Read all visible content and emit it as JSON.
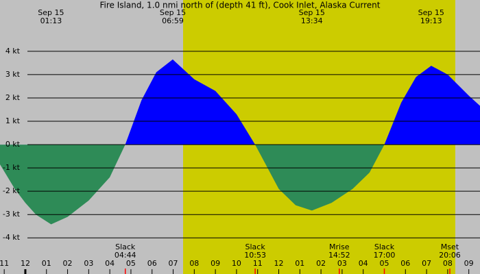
{
  "chart_data": {
    "type": "area",
    "title": "Fire Island, 1.0 nmi north of (depth 41 ft), Cook Inlet, Alaska Current",
    "x": [
      -1.2,
      -0.5,
      0,
      0.5,
      1.22,
      2,
      3,
      4,
      4.73,
      5.5,
      6.2,
      6.98,
      8,
      9,
      10,
      10.88,
      12,
      12.8,
      13.57,
      14.5,
      15.5,
      16.3,
      17,
      17.8,
      18.5,
      19.22,
      20,
      21,
      21.53
    ],
    "series": [
      {
        "color": "#0000ff",
        "negative_color": "#2e8b57",
        "values": [
          -0.85,
          -1.9,
          -2.5,
          -3.0,
          -3.42,
          -3.1,
          -2.4,
          -1.4,
          0,
          1.9,
          3.1,
          3.65,
          2.8,
          2.3,
          1.3,
          0,
          -1.9,
          -2.6,
          -2.83,
          -2.5,
          -1.9,
          -1.2,
          0,
          1.8,
          2.9,
          3.38,
          3.0,
          2.1,
          1.66
        ]
      }
    ],
    "xlim": [
      -1.2,
      21.53
    ],
    "ylim": [
      -5.55,
      6.2
    ],
    "yticks": [
      {
        "value": 4,
        "label": "4 kt"
      },
      {
        "value": 3,
        "label": "3 kt"
      },
      {
        "value": 2,
        "label": "2 kt"
      },
      {
        "value": 1,
        "label": "1 kt"
      },
      {
        "value": 0,
        "label": "0 kt"
      },
      {
        "value": -1,
        "label": "-1 kt"
      },
      {
        "value": -2,
        "label": "-2 kt"
      },
      {
        "value": -3,
        "label": "-3 kt"
      },
      {
        "value": -4,
        "label": "-4 kt"
      }
    ],
    "xticks": [
      {
        "value": -1,
        "label": "11"
      },
      {
        "value": 0,
        "label": "12"
      },
      {
        "value": 1,
        "label": "01"
      },
      {
        "value": 2,
        "label": "02"
      },
      {
        "value": 3,
        "label": "03"
      },
      {
        "value": 4,
        "label": "04"
      },
      {
        "value": 5,
        "label": "05"
      },
      {
        "value": 6,
        "label": "06"
      },
      {
        "value": 7,
        "label": "07"
      },
      {
        "value": 8,
        "label": "08"
      },
      {
        "value": 9,
        "label": "09"
      },
      {
        "value": 10,
        "label": "10"
      },
      {
        "value": 11,
        "label": "11"
      },
      {
        "value": 12,
        "label": "12"
      },
      {
        "value": 13,
        "label": "01"
      },
      {
        "value": 14,
        "label": "02"
      },
      {
        "value": 15,
        "label": "03"
      },
      {
        "value": 16,
        "label": "04"
      },
      {
        "value": 17,
        "label": "05"
      },
      {
        "value": 18,
        "label": "06"
      },
      {
        "value": 19,
        "label": "07"
      },
      {
        "value": 20,
        "label": "08"
      },
      {
        "value": 21,
        "label": "09"
      }
    ],
    "grid": true,
    "daylight": [
      7.47,
      20.36
    ],
    "night_color": "#c0c0c0",
    "day_color": "#cccc00",
    "peaks": [
      {
        "date": "Sep 15",
        "time": "01:13"
      },
      {
        "date": "Sep 15",
        "time": "06:59"
      },
      {
        "date": "Sep 15",
        "time": "13:34"
      },
      {
        "date": "Sep 15",
        "time": "19:13"
      }
    ],
    "events": [
      {
        "name": "Slack",
        "time": "04:44"
      },
      {
        "name": "Slack",
        "time": "10:53"
      },
      {
        "name": "Mrise",
        "time": "14:52"
      },
      {
        "name": "Slack",
        "time": "17:00"
      },
      {
        "name": "Mset",
        "time": "20:06"
      }
    ]
  }
}
